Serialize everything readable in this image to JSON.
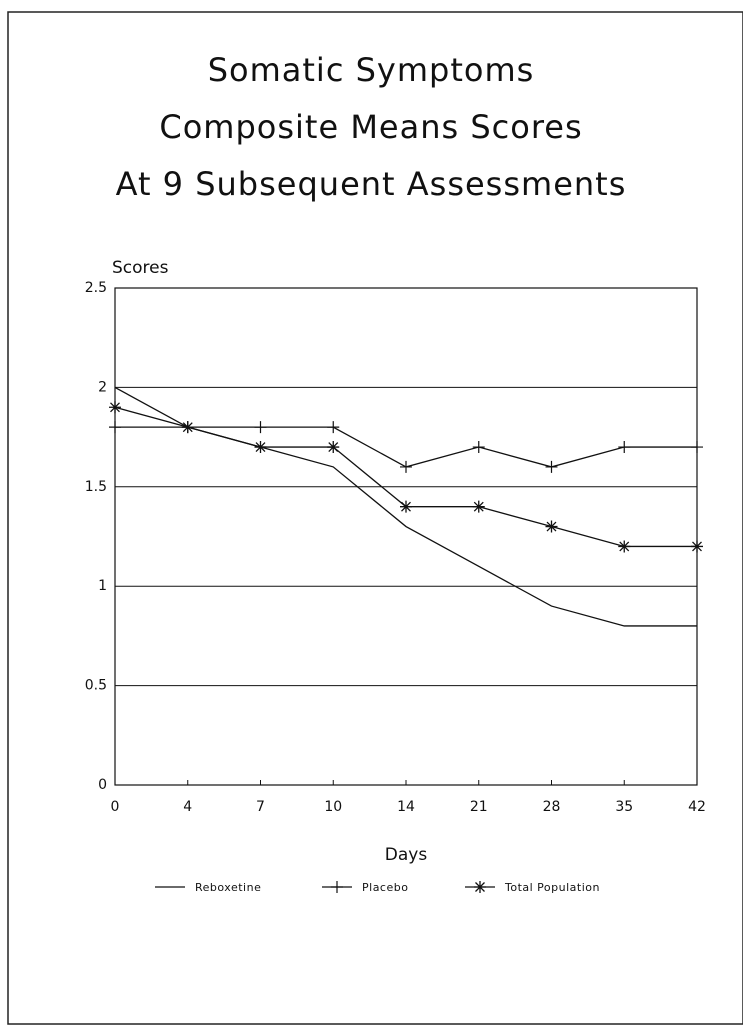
{
  "chart_data": {
    "type": "line",
    "title": [
      "Somatic Symptoms",
      "Composite Means Scores",
      "At 9 Subsequent Assessments"
    ],
    "y_label": "Scores",
    "x_label": "Days",
    "categories": [
      "0",
      "4",
      "7",
      "10",
      "14",
      "21",
      "28",
      "35",
      "42"
    ],
    "series": [
      {
        "name": "Reboxetine",
        "color": "#111111",
        "marker": "none",
        "values": [
          2.0,
          1.8,
          1.7,
          1.6,
          1.3,
          1.1,
          0.9,
          0.8,
          0.8
        ]
      },
      {
        "name": "Placebo",
        "color": "#111111",
        "marker": "plus",
        "values": [
          1.8,
          1.8,
          1.8,
          1.8,
          1.6,
          1.7,
          1.6,
          1.7,
          1.7
        ]
      },
      {
        "name": "Total Population",
        "color": "#111111",
        "marker": "star",
        "values": [
          1.9,
          1.8,
          1.7,
          1.7,
          1.4,
          1.4,
          1.3,
          1.2,
          1.2
        ]
      }
    ],
    "ylim": [
      0,
      2.5
    ],
    "yticks": [
      0,
      0.5,
      1,
      1.5,
      2,
      2.5
    ],
    "grid": true,
    "legend": "bottom"
  }
}
